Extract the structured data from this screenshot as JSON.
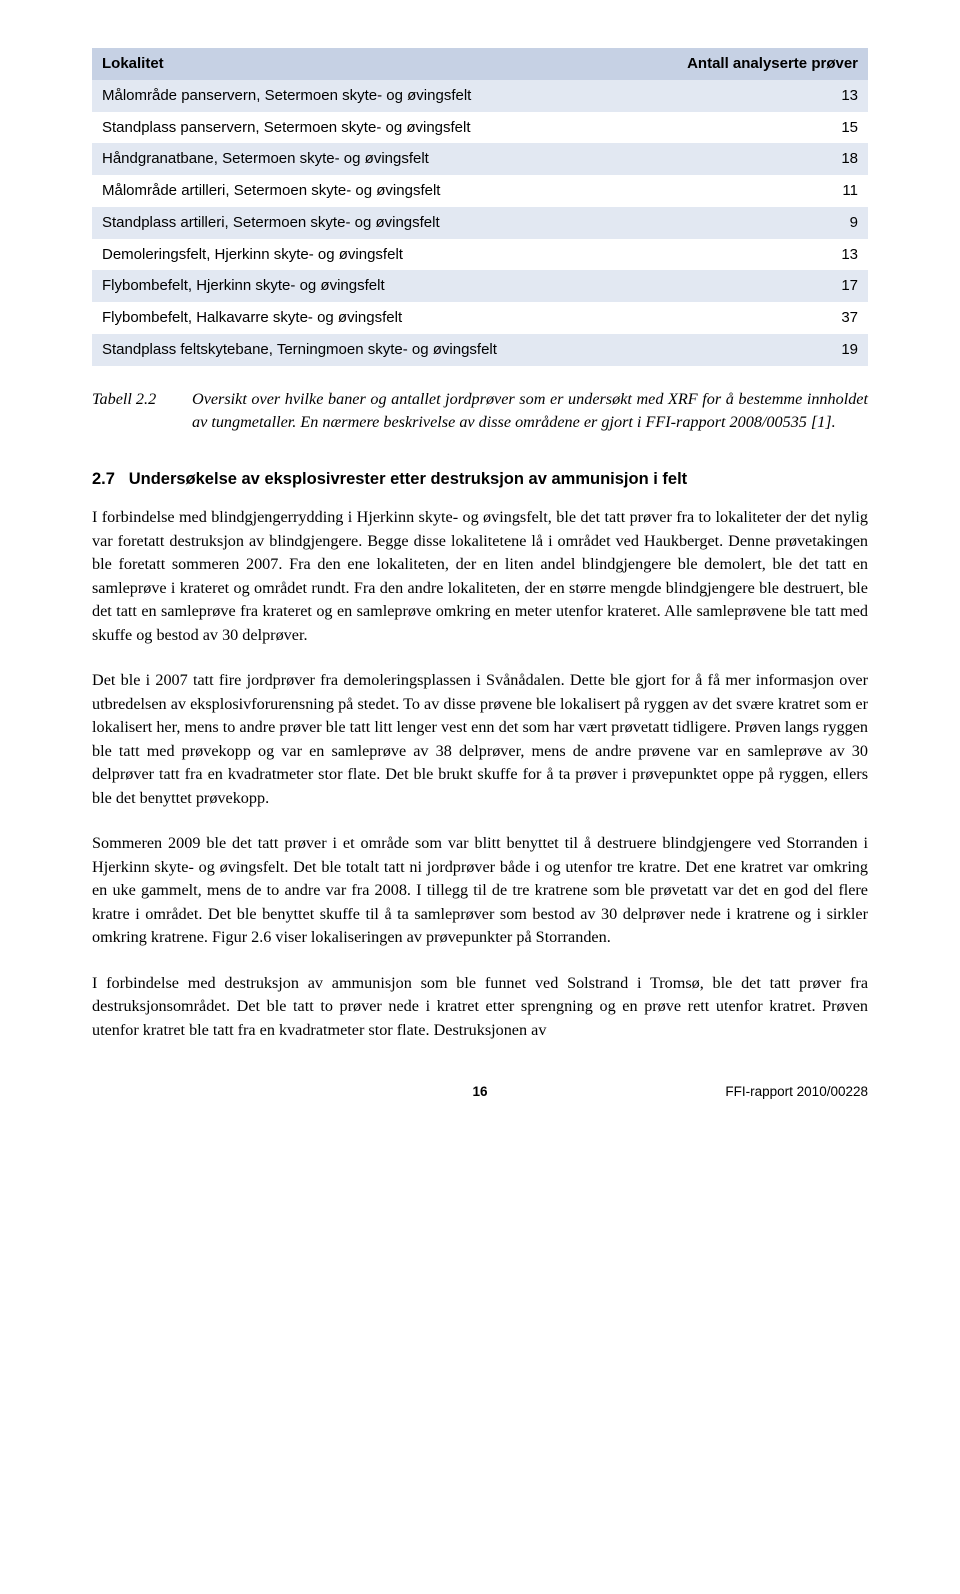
{
  "table": {
    "header_bg": "#c6d1e4",
    "row_even_bg": "#e2e8f2",
    "row_odd_bg": "#ffffff",
    "columns": [
      "Lokalitet",
      "Antall analyserte prøver"
    ],
    "rows": [
      [
        "Målområde panservern, Setermoen skyte- og øvingsfelt",
        "13"
      ],
      [
        "Standplass panservern, Setermoen skyte- og øvingsfelt",
        "15"
      ],
      [
        "Håndgranatbane, Setermoen skyte- og øvingsfelt",
        "18"
      ],
      [
        "Målområde artilleri, Setermoen skyte- og øvingsfelt",
        "11"
      ],
      [
        "Standplass artilleri, Setermoen skyte- og øvingsfelt",
        "9"
      ],
      [
        "Demoleringsfelt, Hjerkinn skyte- og øvingsfelt",
        "13"
      ],
      [
        "Flybombefelt, Hjerkinn skyte- og øvingsfelt",
        "17"
      ],
      [
        "Flybombefelt, Halkavarre skyte- og øvingsfelt",
        "37"
      ],
      [
        "Standplass feltskytebane, Terningmoen skyte- og øvingsfelt",
        "19"
      ]
    ]
  },
  "caption": {
    "label": "Tabell 2.2",
    "text": "Oversikt over hvilke baner og antallet jordprøver som er undersøkt med XRF for å bestemme innholdet av tungmetaller. En nærmere beskrivelse av disse områdene er gjort i FFI-rapport 2008/00535 [1]."
  },
  "section": {
    "number": "2.7",
    "title": "Undersøkelse av eksplosivrester etter destruksjon av ammunisjon i felt"
  },
  "paragraphs": {
    "p1": "I forbindelse med blindgjengerrydding i Hjerkinn skyte- og øvingsfelt, ble det tatt prøver fra to lokaliteter der det nylig var foretatt destruksjon av blindgjengere. Begge disse lokalitetene lå i området ved Haukberget. Denne prøvetakingen ble foretatt sommeren 2007. Fra den ene lokaliteten, der en liten andel blindgjengere ble demolert, ble det tatt en samleprøve i krateret og området rundt. Fra den andre lokaliteten, der en større mengde blindgjengere ble destruert, ble det tatt en samleprøve fra krateret og en samleprøve omkring en meter utenfor krateret. Alle samleprøvene ble tatt med skuffe og bestod av 30 delprøver.",
    "p2": "Det ble i 2007 tatt fire jordprøver fra demoleringsplassen i Svånådalen. Dette ble gjort for å få mer informasjon over utbredelsen av eksplosivforurensning på stedet. To av disse prøvene ble lokalisert på ryggen av det svære kratret som er lokalisert her, mens to andre prøver ble tatt litt lenger vest enn det som har vært prøvetatt tidligere.  Prøven langs ryggen ble tatt med prøvekopp og var en samleprøve av 38 delprøver, mens de andre prøvene var en samleprøve av 30 delprøver tatt fra en kvadratmeter stor flate. Det ble brukt skuffe for å ta prøver i prøvepunktet oppe på ryggen, ellers ble det benyttet prøvekopp.",
    "p3": "Sommeren 2009 ble det tatt prøver i et område som var blitt benyttet til å destruere blindgjengere ved Storranden i Hjerkinn skyte- og øvingsfelt. Det ble totalt tatt ni jordprøver både i og utenfor tre kratre. Det ene kratret var omkring en uke gammelt, mens de to andre var fra 2008. I tillegg til de tre kratrene som ble prøvetatt var det en god del flere kratre i området. Det ble benyttet skuffe til å ta samleprøver som bestod av 30 delprøver nede i kratrene og i sirkler omkring kratrene. Figur 2.6 viser lokaliseringen av prøvepunkter på Storranden.",
    "p4": "I forbindelse med destruksjon av ammunisjon som ble funnet ved Solstrand i Tromsø, ble det tatt prøver fra destruksjonsområdet. Det ble tatt to prøver nede i kratret etter sprengning og en prøve rett utenfor kratret. Prøven utenfor kratret ble tatt fra en kvadratmeter stor flate. Destruksjonen av"
  },
  "footer": {
    "page": "16",
    "ref": "FFI-rapport 2010/00228"
  }
}
